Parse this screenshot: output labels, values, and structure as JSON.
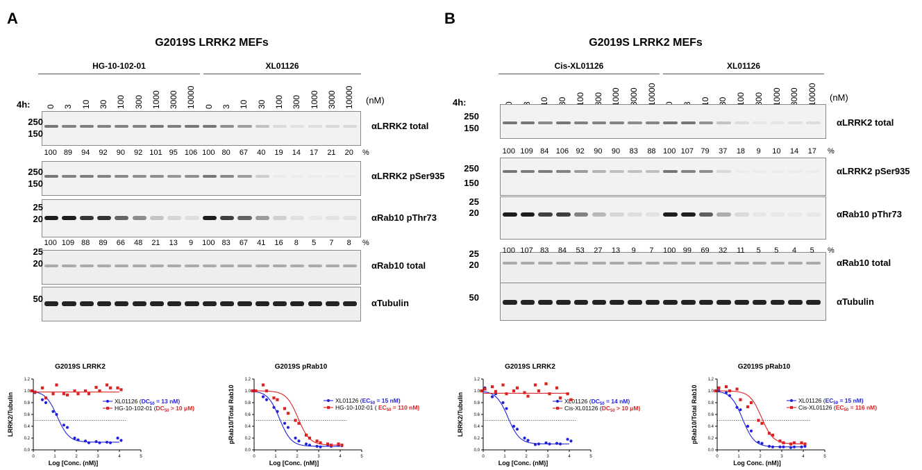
{
  "panels": [
    {
      "label": "A",
      "title": "G2019S LRRK2 MEFs",
      "group1": "HG-10-102-01",
      "group2": "XL01126",
      "time": "4h:",
      "conc_unit": "(nM)",
      "conc_labels": [
        "0",
        "3",
        "10",
        "30",
        "100",
        "300",
        "1000",
        "3000",
        "10000",
        "0",
        "3",
        "10",
        "30",
        "100",
        "300",
        "1000",
        "3000",
        "10000"
      ],
      "blots": [
        {
          "name": "αLRRK2 total",
          "mw": [
            "250",
            "150"
          ]
        },
        {
          "name": "αLRRK2 pSer935",
          "mw": [
            "250",
            "150"
          ]
        },
        {
          "name": "αRab10 pThr73",
          "mw": [
            "25",
            "20"
          ]
        },
        {
          "name": "αRab10 total",
          "mw": [
            "25",
            "20"
          ]
        },
        {
          "name": "αTubulin",
          "mw": [
            "50"
          ]
        }
      ],
      "lrrk2_pct": [
        "100",
        "89",
        "94",
        "92",
        "90",
        "92",
        "101",
        "95",
        "106",
        "100",
        "80",
        "67",
        "40",
        "19",
        "14",
        "17",
        "21",
        "20"
      ],
      "rab10_pct": [
        "100",
        "109",
        "88",
        "89",
        "66",
        "48",
        "21",
        "13",
        "9",
        "100",
        "83",
        "67",
        "41",
        "16",
        "8",
        "5",
        "7",
        "8"
      ],
      "pct_sign": "%",
      "lrrk2_band_intensity": [
        1,
        0.89,
        0.94,
        0.92,
        0.9,
        0.92,
        1.01,
        0.95,
        1.06,
        1,
        0.8,
        0.67,
        0.4,
        0.19,
        0.14,
        0.17,
        0.21,
        0.2
      ],
      "pser_band_intensity": [
        1,
        0.9,
        0.95,
        0.9,
        0.85,
        0.8,
        0.8,
        0.75,
        0.8,
        1,
        0.85,
        0.7,
        0.3,
        0.05,
        0.03,
        0.03,
        0.03,
        0.03
      ],
      "prab_band_intensity": [
        1,
        1.09,
        0.88,
        0.89,
        0.66,
        0.48,
        0.21,
        0.13,
        0.09,
        1,
        0.83,
        0.67,
        0.41,
        0.16,
        0.08,
        0.05,
        0.07,
        0.08
      ]
    },
    {
      "label": "B",
      "title": "G2019S LRRK2 MEFs",
      "group1": "Cis-XL01126",
      "group2": "XL01126",
      "time": "4h:",
      "conc_unit": "(nM)",
      "conc_labels": [
        "0",
        "3",
        "10",
        "30",
        "100",
        "300",
        "1000",
        "3000",
        "10000",
        "0",
        "3",
        "10",
        "30",
        "100",
        "300",
        "1000",
        "3000",
        "10000"
      ],
      "blots": [
        {
          "name": "αLRRK2 total",
          "mw": [
            "250",
            "150"
          ]
        },
        {
          "name": "αLRRK2 pSer935",
          "mw": [
            "250",
            "150"
          ]
        },
        {
          "name": "αRab10 pThr73",
          "mw": [
            "25",
            "20"
          ]
        },
        {
          "name": "αRab10 total",
          "mw": [
            "25",
            "20"
          ]
        },
        {
          "name": "αTubulin",
          "mw": [
            "50"
          ]
        }
      ],
      "lrrk2_pct": [
        "100",
        "109",
        "84",
        "106",
        "92",
        "90",
        "90",
        "83",
        "88",
        "100",
        "107",
        "79",
        "37",
        "18",
        "9",
        "10",
        "14",
        "17"
      ],
      "rab10_pct": [
        "100",
        "107",
        "83",
        "84",
        "53",
        "27",
        "13",
        "9",
        "7",
        "100",
        "99",
        "69",
        "32",
        "11",
        "5",
        "5",
        "4",
        "5"
      ],
      "pct_sign": "%",
      "lrrk2_band_intensity": [
        1,
        1.09,
        0.84,
        1.06,
        0.92,
        0.9,
        0.9,
        0.83,
        0.88,
        1,
        1.07,
        0.79,
        0.37,
        0.18,
        0.09,
        0.1,
        0.14,
        0.17
      ],
      "pser_band_intensity": [
        1,
        0.95,
        0.95,
        0.9,
        0.7,
        0.5,
        0.4,
        0.4,
        0.4,
        1,
        0.9,
        0.8,
        0.2,
        0.03,
        0.03,
        0.03,
        0.03,
        0.03
      ],
      "prab_band_intensity": [
        1,
        1.07,
        0.83,
        0.84,
        0.53,
        0.27,
        0.13,
        0.09,
        0.07,
        1,
        0.99,
        0.69,
        0.32,
        0.11,
        0.05,
        0.05,
        0.04,
        0.05
      ]
    }
  ],
  "chart_data": [
    {
      "type": "scatter",
      "title": "G2019S LRRK2",
      "xlabel": "Log [Conc. (nM)]",
      "ylabel": "LRRK2/Tubulin",
      "xlim": [
        0,
        5
      ],
      "ylim": [
        0,
        1.2
      ],
      "xticks": [
        "0",
        "1",
        "2",
        "3",
        "4",
        "5"
      ],
      "yticks": [
        "0.0",
        "0.2",
        "0.4",
        "0.6",
        "0.8",
        "1.0",
        "1.2"
      ],
      "refline": 0.5,
      "series": [
        {
          "name": "XL01126",
          "label": "XL01126  (",
          "metric": "DC",
          "sub": "50",
          "val": " = 13 nM)",
          "color": "#2222dd",
          "marker": "circle",
          "fit": {
            "top": 1.0,
            "bottom": 0.13,
            "logec": 1.11
          },
          "x": [
            0,
            0,
            0.5,
            0.5,
            1,
            1,
            1.5,
            1.5,
            2,
            2,
            2.5,
            2.5,
            3,
            3,
            3.5,
            3.5,
            4,
            4
          ],
          "y": [
            1.0,
            0.97,
            0.85,
            0.8,
            0.65,
            0.6,
            0.42,
            0.38,
            0.2,
            0.17,
            0.15,
            0.12,
            0.14,
            0.12,
            0.13,
            0.12,
            0.2,
            0.16
          ]
        },
        {
          "name": "HG-10-102-01",
          "label": "HG-10-102-01 (",
          "metric": "DC",
          "sub": "50",
          "val": " > 10 μM)",
          "color": "#dd2222",
          "marker": "square",
          "fit": {
            "flat": 0.98
          },
          "x": [
            0,
            0,
            0.5,
            0.5,
            1,
            1,
            1.5,
            1.5,
            2,
            2,
            2.5,
            2.5,
            3,
            3,
            3.5,
            3.5,
            4,
            4
          ],
          "y": [
            1.0,
            0.98,
            1.05,
            0.88,
            0.95,
            1.1,
            0.95,
            0.93,
            1.0,
            0.95,
            1.0,
            0.95,
            1.06,
            1.0,
            1.1,
            1.05,
            1.05,
            1.02
          ]
        }
      ]
    },
    {
      "type": "scatter",
      "title": "G2019S pRab10",
      "xlabel": "Log [Conc. (nM)]",
      "ylabel": "pRab10/Total Rab10",
      "xlim": [
        0,
        5
      ],
      "ylim": [
        0,
        1.2
      ],
      "xticks": [
        "0",
        "1",
        "2",
        "3",
        "4",
        "5"
      ],
      "yticks": [
        "0.0",
        "0.2",
        "0.4",
        "0.6",
        "0.8",
        "1.0",
        "1.2"
      ],
      "refline": 0.5,
      "series": [
        {
          "name": "XL01126",
          "label": "XL01126  (",
          "metric": "EC",
          "sub": "50",
          "val": " = 15 nM)",
          "color": "#2222dd",
          "marker": "circle",
          "fit": {
            "top": 1.0,
            "bottom": 0.06,
            "logec": 1.18
          },
          "x": [
            0,
            0,
            0.5,
            0.5,
            1,
            1,
            1.5,
            1.5,
            2,
            2,
            2.5,
            2.5,
            3,
            3,
            3.5,
            3.5,
            4,
            4
          ],
          "y": [
            1.0,
            1.0,
            0.9,
            0.85,
            0.72,
            0.65,
            0.45,
            0.38,
            0.2,
            0.15,
            0.1,
            0.08,
            0.06,
            0.05,
            0.08,
            0.06,
            0.08,
            0.07
          ]
        },
        {
          "name": "HG-10-102-01",
          "label": "HG-10-102-01 ( ",
          "metric": "EC",
          "sub": "50",
          "val": " = 110 nM)",
          "color": "#dd2222",
          "marker": "square",
          "fit": {
            "top": 1.0,
            "bottom": 0.08,
            "logec": 2.04
          },
          "x": [
            0,
            0,
            0.5,
            0.5,
            1,
            1,
            1.5,
            1.5,
            2,
            2,
            2.5,
            2.5,
            3,
            3,
            3.5,
            3.5,
            4,
            4
          ],
          "y": [
            1.0,
            1.0,
            1.1,
            1.0,
            0.88,
            0.85,
            0.7,
            0.62,
            0.5,
            0.45,
            0.25,
            0.2,
            0.15,
            0.12,
            0.1,
            0.08,
            0.1,
            0.08
          ]
        }
      ]
    },
    {
      "type": "scatter",
      "title": "G2019S LRRK2",
      "xlabel": "Log [Conc. (nM)]",
      "ylabel": "LRRK2/Tubulin",
      "xlim": [
        0,
        5
      ],
      "ylim": [
        0,
        1.2
      ],
      "xticks": [
        "0",
        "1",
        "2",
        "3",
        "4",
        "5"
      ],
      "yticks": [
        "0.0",
        "0.2",
        "0.4",
        "0.6",
        "0.8",
        "1.0",
        "1.2"
      ],
      "refline": 0.5,
      "series": [
        {
          "name": "XL01126",
          "label": "XL01126  (",
          "metric": "DC",
          "sub": "50",
          "val": " = 14 nM)",
          "color": "#2222dd",
          "marker": "circle",
          "fit": {
            "top": 1.0,
            "bottom": 0.1,
            "logec": 1.15
          },
          "x": [
            0,
            0,
            0.5,
            0.5,
            1,
            1,
            1.5,
            1.5,
            2,
            2,
            2.5,
            2.5,
            3,
            3,
            3.5,
            3.5,
            4,
            4
          ],
          "y": [
            1.0,
            1.05,
            0.9,
            0.95,
            0.8,
            0.7,
            0.4,
            0.35,
            0.2,
            0.16,
            0.09,
            0.1,
            0.12,
            0.1,
            0.11,
            0.1,
            0.18,
            0.15
          ]
        },
        {
          "name": "Cis-XL01126",
          "label": "Cis-XL01126 (",
          "metric": "DC",
          "sub": "50",
          "val": " > 10 μM)",
          "color": "#dd2222",
          "marker": "square",
          "fit": {
            "flat": 0.96
          },
          "x": [
            0,
            0,
            0.5,
            0.5,
            1,
            1,
            1.5,
            1.5,
            2,
            2,
            2.5,
            2.5,
            3,
            3,
            3.5,
            3.5,
            4,
            4
          ],
          "y": [
            1.0,
            1.03,
            1.07,
            0.99,
            1.1,
            0.95,
            1.0,
            1.05,
            0.97,
            0.91,
            1.1,
            1.0,
            1.12,
            0.95,
            1.05,
            0.88,
            0.95,
            0.85
          ]
        }
      ]
    },
    {
      "type": "scatter",
      "title": "G2019S pRab10",
      "xlabel": "Log Conc. (nM)]",
      "ylabel": "pRab10/Total Rab10",
      "xlim": [
        0,
        5
      ],
      "ylim": [
        0,
        1.2
      ],
      "xticks": [
        "0",
        "1",
        "2",
        "3",
        "4",
        "5"
      ],
      "yticks": [
        "0.0",
        "0.2",
        "0.4",
        "0.6",
        "0.8",
        "1.0",
        "1.2"
      ],
      "refline": 0.5,
      "series": [
        {
          "name": "XL01126",
          "label": "XL01126  (",
          "metric": "EC",
          "sub": "50",
          "val": " = 15 nM)",
          "color": "#2222dd",
          "marker": "circle",
          "fit": {
            "top": 1.0,
            "bottom": 0.05,
            "logec": 1.18
          },
          "x": [
            0,
            0,
            0.5,
            0.5,
            1,
            1,
            1.5,
            1.5,
            2,
            2,
            2.5,
            2.5,
            3,
            3,
            3.5,
            3.5,
            4,
            4
          ],
          "y": [
            1.0,
            1.0,
            0.97,
            0.92,
            0.72,
            0.68,
            0.4,
            0.32,
            0.13,
            0.11,
            0.06,
            0.05,
            0.05,
            0.05,
            0.04,
            0.05,
            0.05,
            0.06
          ]
        },
        {
          "name": "Cis-XL01126",
          "label": "Cis-XL01126 (",
          "metric": "EC",
          "sub": "50",
          "val": " = 116 nM)",
          "color": "#dd2222",
          "marker": "square",
          "fit": {
            "top": 1.0,
            "bottom": 0.1,
            "logec": 2.06
          },
          "x": [
            0,
            0,
            0.5,
            0.5,
            1,
            1,
            1.5,
            1.5,
            2,
            2,
            2.5,
            2.5,
            3,
            3,
            3.5,
            3.5,
            4,
            4
          ],
          "y": [
            1.0,
            1.05,
            1.07,
            1.0,
            1.03,
            0.85,
            0.73,
            0.8,
            0.5,
            0.45,
            0.28,
            0.25,
            0.15,
            0.12,
            0.1,
            0.12,
            0.12,
            0.1
          ]
        }
      ]
    }
  ]
}
